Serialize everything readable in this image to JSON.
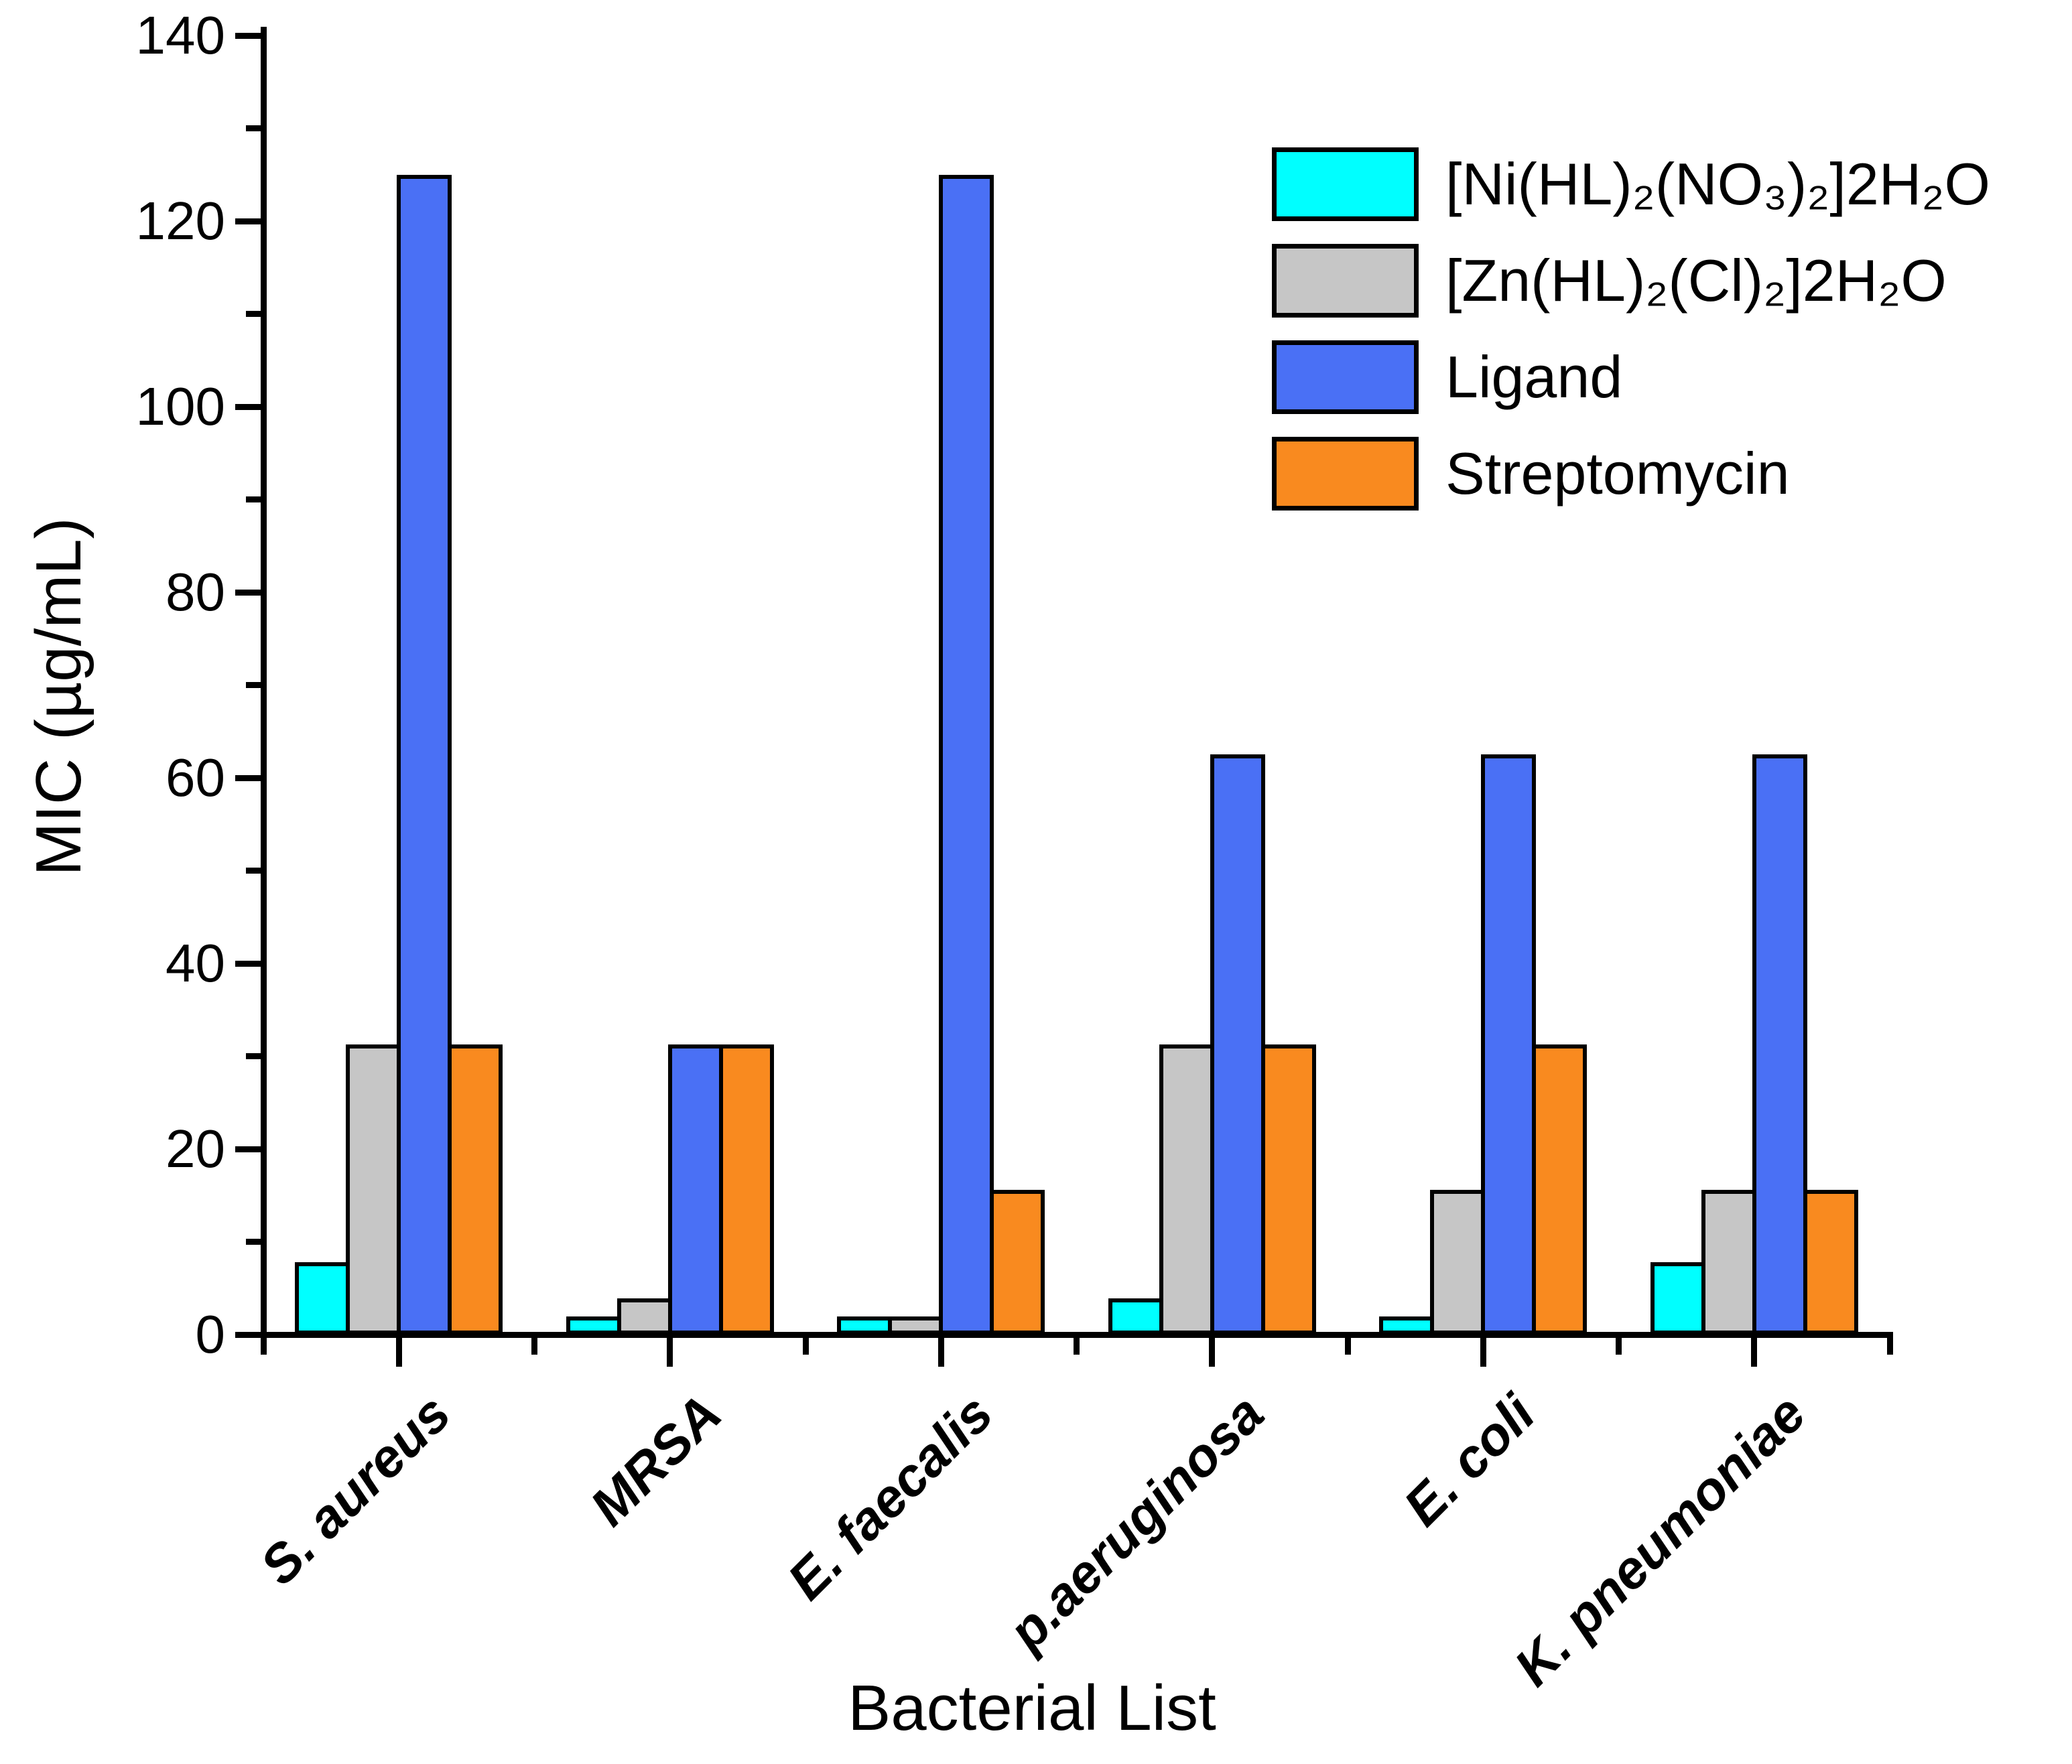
{
  "chart_data": {
    "type": "bar",
    "title": "",
    "xlabel": "Bacterial List",
    "ylabel": "MIC (µg/mL)",
    "ylim": [
      0,
      140
    ],
    "y_major_ticks": [
      0,
      20,
      40,
      60,
      80,
      100,
      120,
      140
    ],
    "y_minor_ticks": [
      10,
      30,
      50,
      70,
      90,
      110,
      130
    ],
    "grid": false,
    "legend_position": "upper-right-inside",
    "background_color": "#FFFFFF",
    "axis_color": "#000000",
    "bar_outline_color": "#000000",
    "categories": [
      "S. aureus",
      "MRSA",
      "E. faecalis",
      "p.aeruginosa",
      "E. coli",
      "K. pneumoniae"
    ],
    "series": [
      {
        "name": "[Ni(HL)₂(NO₃)₂]2H₂O",
        "color": "#00FFFF",
        "values": [
          7.8,
          1.95,
          1.95,
          3.9,
          1.95,
          7.8
        ]
      },
      {
        "name": "[Zn(HL)₂(Cl)₂]2H₂O",
        "color": "#C6C6C6",
        "values": [
          31.25,
          3.9,
          1.95,
          31.25,
          15.6,
          15.6
        ]
      },
      {
        "name": "Ligand",
        "color": "#4A70F5",
        "values": [
          125,
          31.25,
          125,
          62.5,
          62.5,
          62.5
        ]
      },
      {
        "name": "Streptomycin",
        "color": "#F98A1F",
        "values": [
          31.25,
          31.25,
          15.6,
          31.25,
          31.25,
          15.6
        ]
      }
    ]
  }
}
